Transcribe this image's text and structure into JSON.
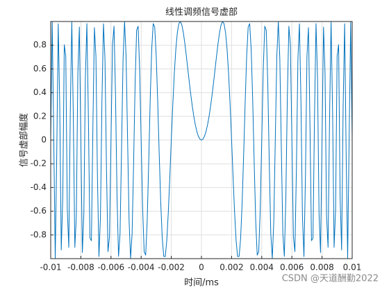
{
  "chart_data": {
    "type": "line",
    "title": "线性调频信号虚部",
    "x_label": "时间/ms",
    "y_label": "信号虚部幅度",
    "watermark": "CSDN @天道酬勤2022",
    "xlim": [
      -0.01,
      0.01
    ],
    "ylim": [
      -1,
      1
    ],
    "xticks": [
      -0.01,
      -0.008,
      -0.006,
      -0.004,
      -0.002,
      0,
      0.002,
      0.004,
      0.006,
      0.008,
      0.01
    ],
    "yticks": [
      -0.8,
      -0.6,
      -0.4,
      -0.2,
      0,
      0.2,
      0.4,
      0.6,
      0.8
    ],
    "grid": true,
    "x": [
      -0.01,
      -0.0099,
      -0.0098,
      -0.0097,
      -0.0096,
      -0.0095,
      -0.0094,
      -0.0093,
      -0.0092,
      -0.0091,
      -0.009,
      -0.0089,
      -0.0088,
      -0.0087,
      -0.0086,
      -0.0085,
      -0.0084,
      -0.0083,
      -0.0082,
      -0.0081,
      -0.008,
      -0.0079,
      -0.0078,
      -0.0077,
      -0.0076,
      -0.0075,
      -0.0074,
      -0.0073,
      -0.0072,
      -0.0071,
      -0.007,
      -0.0069,
      -0.0068,
      -0.0067,
      -0.0066,
      -0.0065,
      -0.0064,
      -0.0063,
      -0.0062,
      -0.0061,
      -0.006,
      -0.0059,
      -0.0058,
      -0.0057,
      -0.0056,
      -0.0055,
      -0.0054,
      -0.0053,
      -0.0052,
      -0.0051,
      -0.005,
      -0.0049,
      -0.0048,
      -0.0047,
      -0.0046,
      -0.0045,
      -0.0044,
      -0.0043,
      -0.0042,
      -0.0041,
      -0.004,
      -0.0039,
      -0.0038,
      -0.0037,
      -0.0036,
      -0.0035,
      -0.0034,
      -0.0033,
      -0.0032,
      -0.0031,
      -0.003,
      -0.0029,
      -0.0028,
      -0.0027,
      -0.0026,
      -0.0025,
      -0.0024,
      -0.0023,
      -0.0022,
      -0.0021,
      -0.002,
      -0.0019,
      -0.0018,
      -0.0017,
      -0.0016,
      -0.0015,
      -0.0014,
      -0.0013,
      -0.0012,
      -0.0011,
      -0.001,
      -0.0009,
      -0.0008,
      -0.0007,
      -0.0006,
      -0.0005,
      -0.0004,
      -0.0003,
      -0.0002,
      -0.0001,
      0,
      0.0001,
      0.0002,
      0.0003,
      0.0004,
      0.0005,
      0.0006,
      0.0007,
      0.0008,
      0.0009,
      0.001,
      0.0011,
      0.0012,
      0.0013,
      0.0014,
      0.0015,
      0.0016,
      0.0017,
      0.0018,
      0.0019,
      0.002,
      0.0021,
      0.0022,
      0.0023,
      0.0024,
      0.0025,
      0.0026,
      0.0027,
      0.0028,
      0.0029,
      0.003,
      0.0031,
      0.0032,
      0.0033,
      0.0034,
      0.0035,
      0.0036,
      0.0037,
      0.0038,
      0.0039,
      0.004,
      0.0041,
      0.0042,
      0.0043,
      0.0044,
      0.0045,
      0.0046,
      0.0047,
      0.0048,
      0.0049,
      0.005,
      0.0051,
      0.0052,
      0.0053,
      0.0054,
      0.0055,
      0.0056,
      0.0057,
      0.0058,
      0.0059,
      0.006,
      0.0061,
      0.0062,
      0.0063,
      0.0064,
      0.0065,
      0.0066,
      0.0067,
      0.0068,
      0.0069,
      0.007,
      0.0071,
      0.0072,
      0.0073,
      0.0074,
      0.0075,
      0.0076,
      0.0077,
      0.0078,
      0.0079,
      0.008,
      0.0081,
      0.0082,
      0.0083,
      0.0084,
      0.0085,
      0.0086,
      0.0087,
      0.0088,
      0.0089,
      0.009,
      0.0091,
      0.0092,
      0.0093,
      0.0094,
      0.0095,
      0.0096,
      0.0097,
      0.0098,
      0.0099,
      0.01
    ],
    "series": [
      {
        "color": "#0072bd",
        "values": [
          0,
          1,
          0.0314,
          -0.9975,
          -0.1253,
          0.9808,
          0.279,
          -0.9269,
          -0.4818,
          0.8043,
          0.7071,
          -0.5814,
          -0.9048,
          0.2411,
          0.9995,
          0.1951,
          -0.9048,
          -0.6434,
          0.5621,
          0.9535,
          0,
          -0.9486,
          -0.6129,
          0.5292,
          0.9823,
          0.1951,
          -0.8271,
          -0.8486,
          0.1253,
          0.9486,
          0.7071,
          -0.3015,
          -0.9823,
          -0.6434,
          0.3387,
          0.9808,
          0.6845,
          -0.2411,
          -0.9409,
          -0.8138,
          0,
          0.8043,
          0.9603,
          0.3754,
          -0.4818,
          -0.9808,
          -0.7902,
          -0.0706,
          0.6845,
          1,
          0.7071,
          0.0079,
          -0.6845,
          -0.9975,
          -0.7902,
          -0.1951,
          0.4818,
          0.9269,
          0.9603,
          0.594,
          0,
          -0.5814,
          -0.9409,
          -0.9705,
          -0.6845,
          -0.1951,
          0.3387,
          0.7649,
          0.9823,
          0.9535,
          0.7071,
          0.3165,
          -0.1253,
          -0.5292,
          -0.8271,
          -0.9808,
          -0.9823,
          -0.8486,
          -0.6129,
          -0.3165,
          0,
          0.3015,
          0.5621,
          0.7649,
          0.9048,
          0.9808,
          0.9995,
          0.9705,
          0.9048,
          0.8138,
          0.7071,
          0.594,
          0.4818,
          0.3754,
          0.279,
          0.1951,
          0.1253,
          0.0706,
          0.0314,
          0.0079,
          0,
          0.0079,
          0.0314,
          0.0706,
          0.1253,
          0.1951,
          0.279,
          0.3754,
          0.4818,
          0.594,
          0.7071,
          0.8138,
          0.9048,
          0.9705,
          0.9995,
          0.9808,
          0.9048,
          0.7649,
          0.5621,
          0.3015,
          0,
          -0.3165,
          -0.6129,
          -0.8486,
          -0.9823,
          -0.9808,
          -0.8271,
          -0.5292,
          -0.1253,
          0.3165,
          0.7071,
          0.9535,
          0.9823,
          0.7649,
          0.3387,
          -0.1951,
          -0.6845,
          -0.9705,
          -0.9409,
          -0.5814,
          0,
          0.594,
          0.9603,
          0.9269,
          0.4818,
          -0.1951,
          -0.7902,
          -0.9975,
          -0.6845,
          0.0079,
          0.7071,
          1,
          0.6845,
          -0.0706,
          -0.7902,
          -0.9808,
          -0.4818,
          0.3754,
          0.9603,
          0.8043,
          0,
          -0.8138,
          -0.9409,
          -0.2411,
          0.6845,
          0.9808,
          0.3387,
          -0.6434,
          -0.9823,
          -0.3015,
          0.7071,
          0.9486,
          0.1253,
          -0.8486,
          -0.8271,
          0.1951,
          0.9823,
          0.5292,
          -0.6129,
          -0.9486,
          0,
          0.9535,
          0.5621,
          -0.6434,
          -0.9048,
          0.1951,
          0.9995,
          0.2411,
          -0.9048,
          -0.5814,
          0.7071,
          0.8043,
          -0.4818,
          -0.9269,
          0.279,
          0.9808,
          -0.1253,
          -0.9975,
          0.0314,
          1,
          0
        ]
      }
    ]
  }
}
